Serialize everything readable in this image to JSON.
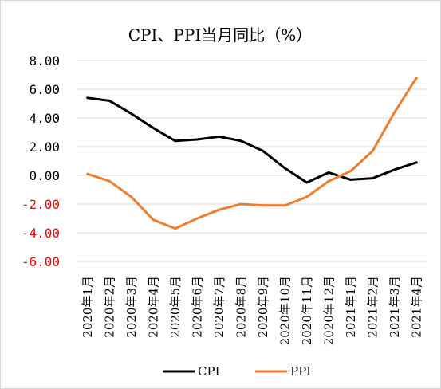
{
  "chart_data": {
    "type": "line",
    "title": "CPI、PPI当月同比（%）",
    "xlabel": "",
    "ylabel": "",
    "categories": [
      "2020年1月",
      "2020年2月",
      "2020年3月",
      "2020年4月",
      "2020年5月",
      "2020年6月",
      "2020年7月",
      "2020年8月",
      "2020年9月",
      "2020年10月",
      "2020年11月",
      "2020年12月",
      "2021年1月",
      "2021年2月",
      "2021年3月",
      "2021年4月"
    ],
    "y_tick_labels": [
      "8.00",
      "6.00",
      "4.00",
      "2.00",
      "0.00",
      "-2.00",
      "-4.00",
      "-6.00"
    ],
    "ylim": [
      -6,
      8
    ],
    "grid": true,
    "legend_position": "bottom",
    "series": [
      {
        "name": "CPI",
        "color": "#000000",
        "values": [
          5.4,
          5.2,
          4.3,
          3.3,
          2.4,
          2.5,
          2.7,
          2.4,
          1.7,
          0.5,
          -0.5,
          0.2,
          -0.3,
          -0.2,
          0.4,
          0.9
        ]
      },
      {
        "name": "PPI",
        "color": "#ed7d31",
        "values": [
          0.1,
          -0.4,
          -1.5,
          -3.1,
          -3.7,
          -3.0,
          -2.4,
          -2.0,
          -2.1,
          -2.1,
          -1.5,
          -0.4,
          0.3,
          1.7,
          4.4,
          6.8
        ]
      }
    ],
    "positive_tick_color": "#000000",
    "negative_tick_color": "#ff0000",
    "gridline_color": "#d9d9d9"
  }
}
